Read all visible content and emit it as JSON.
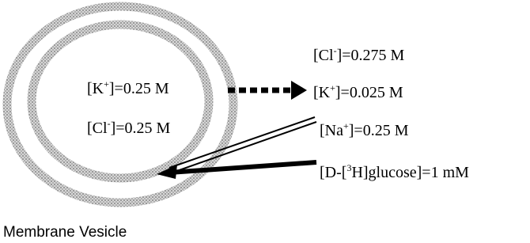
{
  "inside": [
    {
      "pre": "[K",
      "sup": "+",
      "post": "]=0.25 M"
    },
    {
      "pre": "[Cl",
      "sup": "-",
      "post": "]=0.25 M"
    }
  ],
  "outside": [
    {
      "pre": "[Cl",
      "sup": "-",
      "post": "]=0.275 M"
    },
    {
      "pre": "[K",
      "sup": "+",
      "post": "]=0.025 M"
    },
    {
      "pre": "[Na",
      "sup": "+",
      "post": "]=0.25 M"
    },
    {
      "pre": "[D-[",
      "sup": "3",
      "post": "H]glucose]=1 mM"
    }
  ],
  "caption": "Membrane Vesicle"
}
